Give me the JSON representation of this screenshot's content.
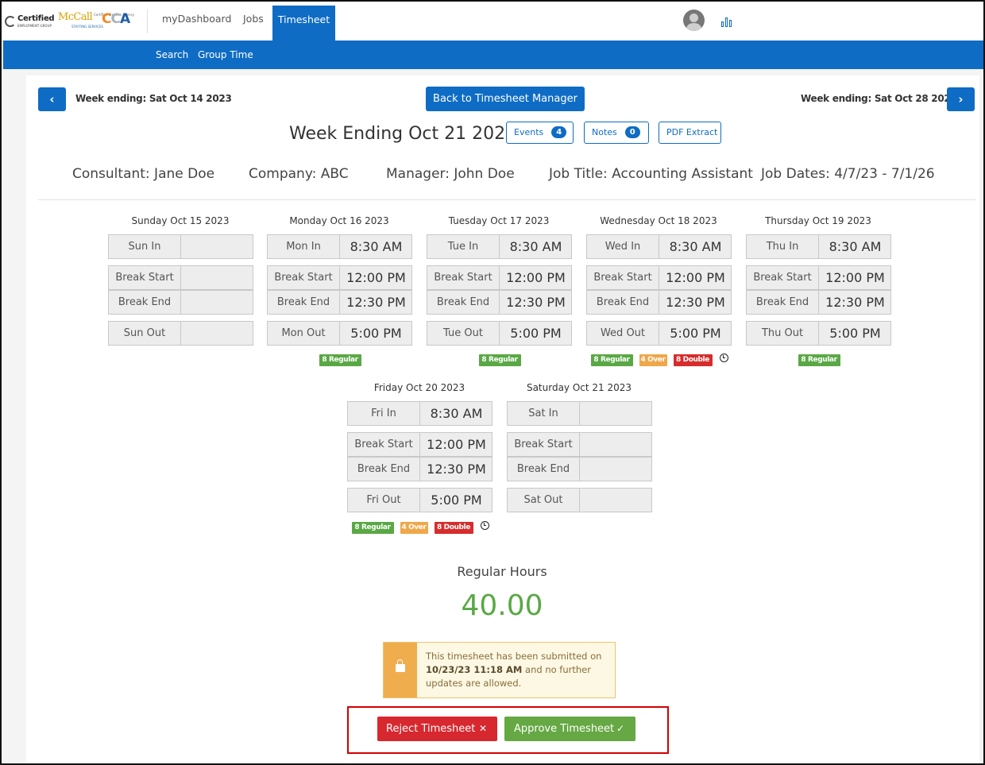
{
  "header": {
    "logo": {
      "certified": "Certified",
      "certified_sub": "EMPLOYMENT GROUP",
      "mccall": "McCall",
      "mccall_sub": "STAFFING SERVICES",
      "cca_sub": "Certified Creative Agency",
      "cca_a": "C",
      "cca_b": "C",
      "cca_c": "A"
    },
    "nav": [
      "myDashboard",
      "Jobs",
      "Timesheet"
    ],
    "subnav": [
      "Search",
      "Group Time"
    ]
  },
  "week": {
    "prev_label": "Week ending: Sat Oct 14 2023",
    "next_label": "Week ending: Sat Oct 28 2023",
    "back_button": "Back to Timesheet Manager",
    "title": "Week Ending Oct 21 2023",
    "events_label": "Events",
    "events_count": "4",
    "notes_label": "Notes",
    "notes_count": "0",
    "pdf_label": "PDF Extract",
    "prev_icon": "chevron-left",
    "next_icon": "chevron-right"
  },
  "info": {
    "consultant": "Consultant:  Jane Doe",
    "company": "Company:  ABC",
    "manager": "Manager:  John Doe",
    "job_title": "Job Title: Accounting Assistant",
    "job_dates": "Job Dates: 4/7/23 - 7/1/26"
  },
  "days": [
    {
      "title": "Sunday Oct 15 2023",
      "rows": [
        [
          "Sun In",
          ""
        ],
        [
          "Break Start",
          ""
        ],
        [
          "Break End",
          ""
        ],
        [
          "Sun Out",
          ""
        ]
      ],
      "badges": []
    },
    {
      "title": "Monday Oct 16 2023",
      "rows": [
        [
          "Mon In",
          "8:30 AM"
        ],
        [
          "Break Start",
          "12:00 PM"
        ],
        [
          "Break End",
          "12:30 PM"
        ],
        [
          "Mon Out",
          "5:00 PM"
        ]
      ],
      "badges": [
        "8 Regular"
      ]
    },
    {
      "title": "Tuesday Oct 17 2023",
      "rows": [
        [
          "Tue In",
          "8:30 AM"
        ],
        [
          "Break Start",
          "12:00 PM"
        ],
        [
          "Break End",
          "12:30 PM"
        ],
        [
          "Tue Out",
          "5:00 PM"
        ]
      ],
      "badges": [
        "8 Regular"
      ]
    },
    {
      "title": "Wednesday Oct 18 2023",
      "rows": [
        [
          "Wed In",
          "8:30 AM"
        ],
        [
          "Break Start",
          "12:00 PM"
        ],
        [
          "Break End",
          "12:30 PM"
        ],
        [
          "Wed Out",
          "5:00 PM"
        ]
      ],
      "badges": [
        "8 Regular",
        "4 Over",
        "8 Double"
      ]
    },
    {
      "title": "Thursday Oct 19 2023",
      "rows": [
        [
          "Thu In",
          "8:30 AM"
        ],
        [
          "Break Start",
          "12:00 PM"
        ],
        [
          "Break End",
          "12:30 PM"
        ],
        [
          "Thu Out",
          "5:00 PM"
        ]
      ],
      "badges": [
        "8 Regular"
      ]
    },
    {
      "title": "Friday Oct 20 2023",
      "rows": [
        [
          "Fri In",
          "8:30 AM"
        ],
        [
          "Break Start",
          "12:00 PM"
        ],
        [
          "Break End",
          "12:30 PM"
        ],
        [
          "Fri Out",
          "5:00 PM"
        ]
      ],
      "badges": [
        "8 Regular",
        "4 Over",
        "8 Double"
      ]
    },
    {
      "title": "Saturday Oct 21 2023",
      "rows": [
        [
          "Sat In",
          ""
        ],
        [
          "Break Start",
          ""
        ],
        [
          "Break End",
          ""
        ],
        [
          "Sat Out",
          ""
        ]
      ],
      "badges": []
    }
  ],
  "summary": {
    "regular_title": "Regular Hours",
    "regular_value": "40.00"
  },
  "alert": {
    "text_before": "This timesheet has been submitted on",
    "timestamp": "10/23/23 11:18 AM",
    "text_after": "and no further updates are allowed."
  },
  "actions": {
    "reject": "Reject Timesheet",
    "reject_icon": "✕",
    "approve": "Approve Timesheet",
    "approve_icon": "✓"
  },
  "colors": {
    "primary": "#0e6cc4",
    "regular": "#5aa845",
    "over": "#f0a74a",
    "double": "#d72c2c",
    "reject": "#d7282f",
    "approve": "#66a844",
    "highlight_box": "#d40000"
  }
}
